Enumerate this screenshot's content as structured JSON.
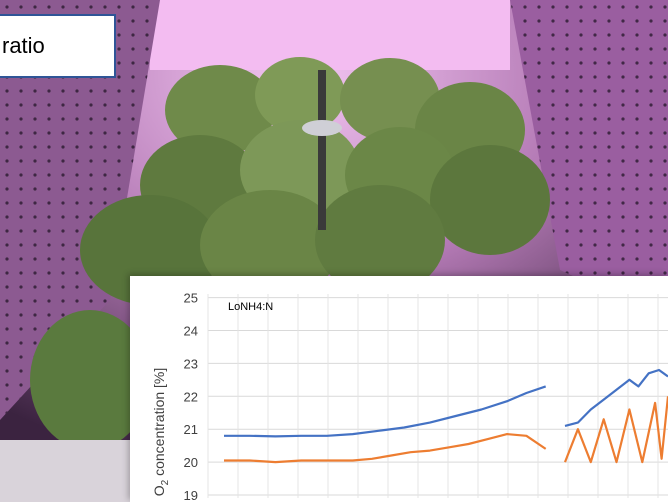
{
  "header": {
    "title_fragment": "ratio"
  },
  "chart_data": {
    "type": "line",
    "annotation": "LoNH4:N",
    "ylabel_prefix": "O",
    "ylabel_sub": "2",
    "ylabel_suffix": " concentration [%]",
    "ylim": [
      19,
      25
    ],
    "yticks": [
      "19",
      "20",
      "21",
      "22",
      "23",
      "24",
      "25"
    ],
    "grid": true,
    "series": [
      {
        "color": "#4472c4",
        "segments": [
          [
            [
              0,
              20.8
            ],
            [
              20,
              20.8
            ],
            [
              40,
              20.78
            ],
            [
              60,
              20.8
            ],
            [
              80,
              20.8
            ],
            [
              100,
              20.85
            ],
            [
              120,
              20.95
            ],
            [
              140,
              21.05
            ],
            [
              160,
              21.2
            ],
            [
              180,
              21.4
            ],
            [
              200,
              21.6
            ],
            [
              220,
              21.85
            ],
            [
              235,
              22.1
            ],
            [
              250,
              22.3
            ]
          ],
          [
            [
              265,
              21.1
            ],
            [
              275,
              21.2
            ],
            [
              285,
              21.6
            ],
            [
              295,
              21.9
            ],
            [
              305,
              22.2
            ],
            [
              315,
              22.5
            ],
            [
              322,
              22.3
            ],
            [
              330,
              22.7
            ],
            [
              338,
              22.8
            ],
            [
              345,
              22.6
            ]
          ]
        ]
      },
      {
        "color": "#ed7d31",
        "segments": [
          [
            [
              0,
              20.05
            ],
            [
              20,
              20.05
            ],
            [
              40,
              20.0
            ],
            [
              60,
              20.05
            ],
            [
              80,
              20.05
            ],
            [
              100,
              20.05
            ],
            [
              115,
              20.1
            ],
            [
              130,
              20.2
            ],
            [
              145,
              20.3
            ],
            [
              160,
              20.35
            ],
            [
              175,
              20.45
            ],
            [
              190,
              20.55
            ],
            [
              205,
              20.7
            ],
            [
              220,
              20.85
            ],
            [
              235,
              20.8
            ],
            [
              250,
              20.4
            ]
          ],
          [
            [
              265,
              20.0
            ],
            [
              275,
              21.0
            ],
            [
              285,
              20.0
            ],
            [
              295,
              21.3
            ],
            [
              305,
              20.0
            ],
            [
              315,
              21.6
            ],
            [
              325,
              20.0
            ],
            [
              335,
              21.8
            ],
            [
              340,
              20.1
            ],
            [
              345,
              22.0
            ]
          ]
        ]
      }
    ]
  }
}
